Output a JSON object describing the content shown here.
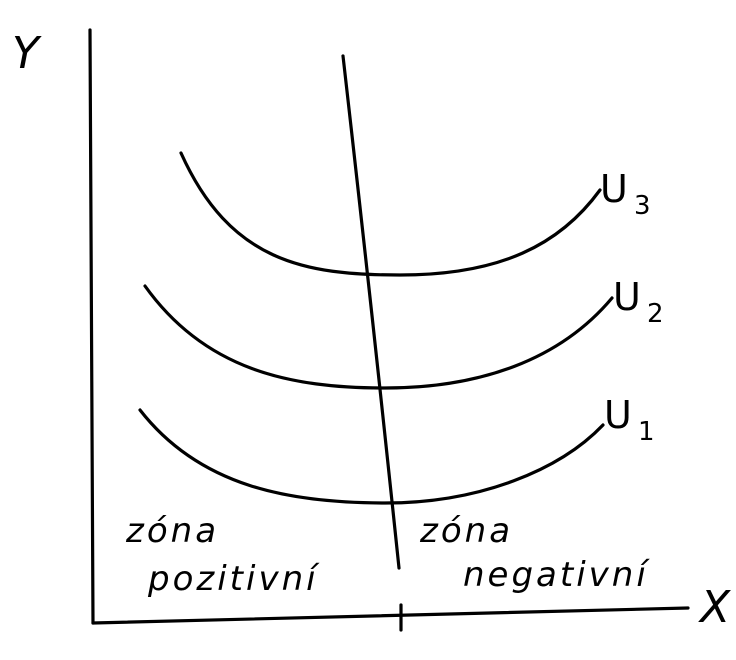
{
  "diagram": {
    "axis_y_label": "Y",
    "axis_x_label": "X",
    "curves": [
      {
        "letter": "U",
        "sub": "3"
      },
      {
        "letter": "U",
        "sub": "2"
      },
      {
        "letter": "U",
        "sub": "1"
      }
    ],
    "zone_left": [
      "zóna",
      "pozitivní"
    ],
    "zone_right": [
      "zóna",
      "negativní"
    ]
  }
}
